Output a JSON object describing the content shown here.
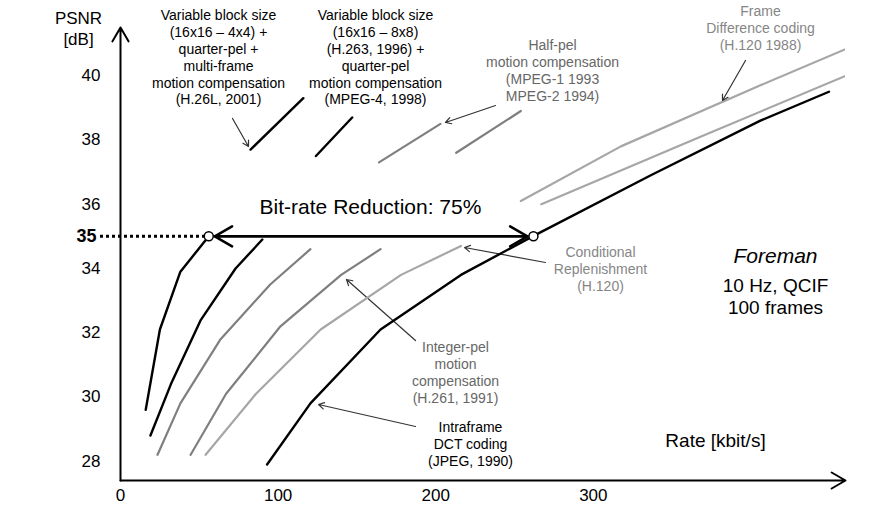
{
  "chart_data": {
    "type": "line",
    "x_label": "Rate [kbit/s]",
    "y_label": "PSNR [dB]",
    "xlim": [
      0,
      460
    ],
    "ylim": [
      27.4,
      41.5
    ],
    "xticks": [
      0,
      100,
      200,
      300
    ],
    "yticks": [
      28,
      30,
      32,
      34,
      36,
      38,
      40
    ],
    "grid": false,
    "series": [
      {
        "name": "Variable block size\n(16x16 – 4x4) +\nquarter-pel +\nmulti-frame\nmotion compensation\n(H.26L, 2001)",
        "color": "#000000",
        "x": [
          16,
          25,
          38,
          56,
          null,
          82.5,
          116
        ],
        "values": [
          29.6,
          32.1,
          33.9,
          35.0,
          null,
          37.7,
          39.3
        ]
      },
      {
        "name": "Variable block size\n(16x16 – 8x8)\n(H.263, 1996) +\nquarter-pel\nmotion compensation\n(MPEG-4, 1998)",
        "color": "#000000",
        "x": [
          19,
          32,
          51,
          73,
          90,
          null,
          124,
          147
        ],
        "values": [
          28.8,
          30.4,
          32.4,
          34.0,
          34.9,
          null,
          37.5,
          38.7
        ]
      },
      {
        "name": "Half-pel\nmotion compensation\n(MPEG-1 1993\nMPEG-2 1994)",
        "color": "#7f7f7f",
        "x": [
          23.5,
          38,
          63.5,
          95,
          120.5,
          null,
          164,
          203
        ],
        "values": [
          28.2,
          29.8,
          31.8,
          33.5,
          34.6,
          null,
          37.3,
          38.5
        ]
      },
      {
        "name": "Integer-pel\nmotion\ncompensation\n(H.261, 1991)",
        "color": "#7f7f7f",
        "x": [
          44.5,
          67,
          101.5,
          140,
          165,
          null,
          213,
          254
        ],
        "values": [
          28.2,
          30.1,
          32.2,
          33.8,
          34.6,
          null,
          37.6,
          38.9
        ]
      },
      {
        "name": "Conditional\nReplenishment\n(H.120)",
        "color": "#a6a6a6",
        "x": [
          54,
          86,
          127,
          178,
          216,
          null,
          267,
          368,
          470
        ],
        "values": [
          28.2,
          30.1,
          32.1,
          33.8,
          34.7,
          null,
          36.0,
          38.1,
          40.2
        ]
      },
      {
        "name": "Frame\nDifference coding\n(H.120 1988)",
        "color": "#a6a6a6",
        "x": [
          254,
          317.5,
          406,
          463.5
        ],
        "values": [
          36.1,
          37.8,
          39.7,
          40.9
        ]
      },
      {
        "name": "Intraframe\nDCT coding\n(JPEG, 1990)",
        "color": "#000000",
        "x": [
          93,
          120.5,
          165,
          216,
          261.5,
          336.5,
          406,
          449.5
        ],
        "values": [
          27.9,
          29.8,
          32.1,
          33.8,
          35.0,
          36.9,
          38.6,
          39.5
        ]
      }
    ],
    "annotations": [
      {
        "text": "Bit-rate Reduction: 75%",
        "from": 56,
        "to": 262,
        "y": 35
      },
      {
        "text": "Foreman"
      },
      {
        "text": "10 Hz, QCIF\n100 frames"
      }
    ]
  }
}
